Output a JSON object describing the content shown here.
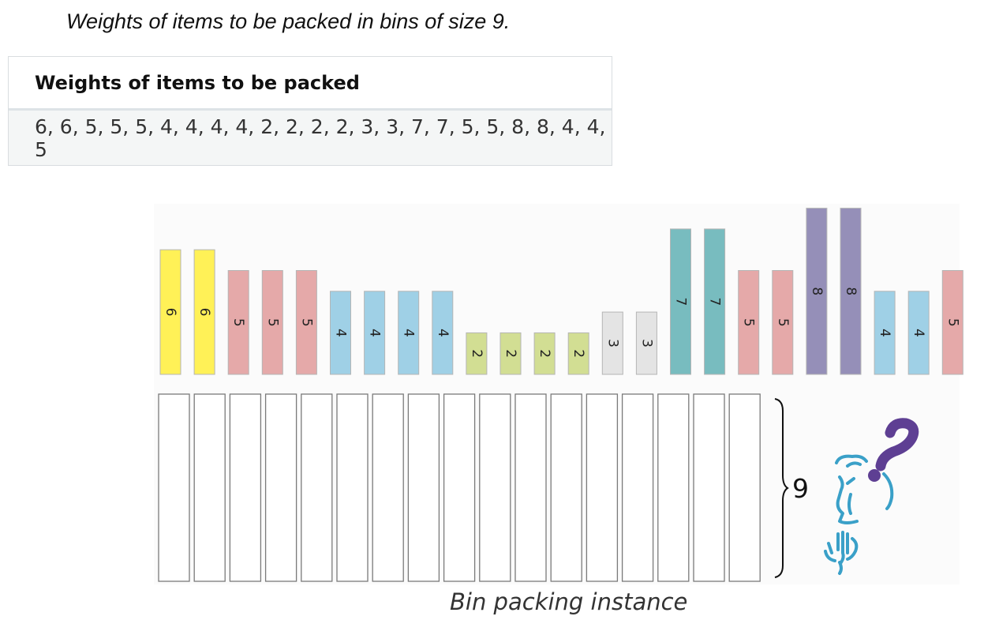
{
  "caption_top": "Weights of items to be packed in bins of size 9.",
  "table": {
    "header": "Weights of items to be packed",
    "weights_text": "6, 6, 5, 5, 5, 4, 4, 4, 4, 2, 2, 2, 2, 3, 3, 7, 7, 5, 5, 8, 8, 4, 4, 5"
  },
  "caption_bottom": "Bin packing instance",
  "chart_data": {
    "type": "bar",
    "categories": [
      "6",
      "6",
      "5",
      "5",
      "5",
      "4",
      "4",
      "4",
      "4",
      "2",
      "2",
      "2",
      "2",
      "3",
      "3",
      "7",
      "7",
      "5",
      "5",
      "8",
      "8",
      "4",
      "4",
      "5"
    ],
    "values": [
      6,
      6,
      5,
      5,
      5,
      4,
      4,
      4,
      4,
      2,
      2,
      2,
      2,
      3,
      3,
      7,
      7,
      5,
      5,
      8,
      8,
      4,
      4,
      5
    ],
    "bin_capacity": 9,
    "bin_count": 17,
    "bin_capacity_label": "9"
  },
  "colors": {
    "weight_2": "#d2de93",
    "weight_3": "#e4e4e4",
    "weight_4": "#9fd0e6",
    "weight_5": "#e5a9a9",
    "weight_6": "#fff157",
    "weight_7": "#78bcbf",
    "weight_8": "#958fb8",
    "question_mark": "#5e3f93",
    "thinker_figure": "#3aa0c8"
  },
  "icons": {
    "thinking_person": "thinking-person-icon",
    "question_mark": "question-mark-icon"
  }
}
